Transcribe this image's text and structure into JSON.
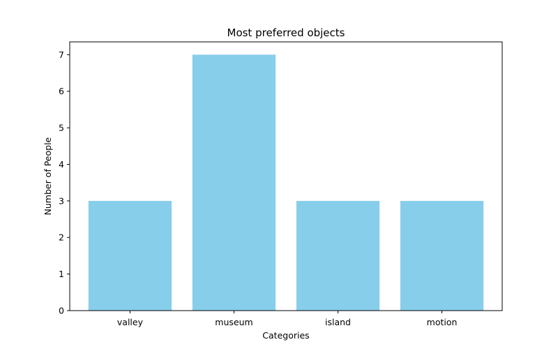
{
  "chart_data": {
    "type": "bar",
    "title": "Most preferred objects",
    "xlabel": "Categories",
    "ylabel": "Number of People",
    "categories": [
      "valley",
      "museum",
      "island",
      "motion"
    ],
    "values": [
      3,
      7,
      3,
      3
    ],
    "ylim": [
      0,
      7.35
    ],
    "yticks": [
      "0",
      "1",
      "2",
      "3",
      "4",
      "5",
      "6",
      "7"
    ],
    "bar_color": "#87ceeb",
    "grid": false,
    "legend": "none"
  }
}
